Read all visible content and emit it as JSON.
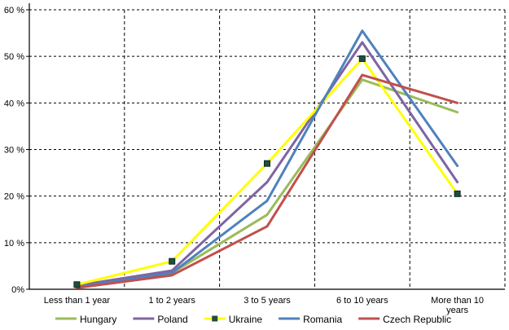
{
  "chart_data": {
    "type": "line",
    "categories": [
      "Less than 1 year",
      "1 to 2 years",
      "3 to 5 years",
      "6 to 10 years",
      "More than 10 years"
    ],
    "ylim": [
      0,
      60
    ],
    "yticks": [
      0,
      10,
      20,
      30,
      40,
      50,
      60
    ],
    "ytick_labels": [
      "0%",
      "10 %",
      "20 %",
      "30 %",
      "40 %",
      "50 %",
      "60 %"
    ],
    "grid": true,
    "legend_position": "bottom",
    "series": [
      {
        "name": "Hungary",
        "color": "#9bbb59",
        "values": [
          0.5,
          3.5,
          16,
          45,
          38
        ],
        "marker": "none"
      },
      {
        "name": "Poland",
        "color": "#8064a2",
        "values": [
          0.8,
          4,
          23,
          53,
          23
        ],
        "marker": "none"
      },
      {
        "name": "Ukraine",
        "color": "#ffff00",
        "values": [
          1,
          6,
          27,
          49.5,
          20.5
        ],
        "marker": "square"
      },
      {
        "name": "Romania",
        "color": "#4f81bd",
        "values": [
          0.5,
          3.5,
          19,
          55.5,
          26.5
        ],
        "marker": "none"
      },
      {
        "name": "Czech Republic",
        "color": "#c0504d",
        "values": [
          0.3,
          3,
          13.5,
          46,
          40
        ],
        "marker": "none"
      }
    ]
  }
}
